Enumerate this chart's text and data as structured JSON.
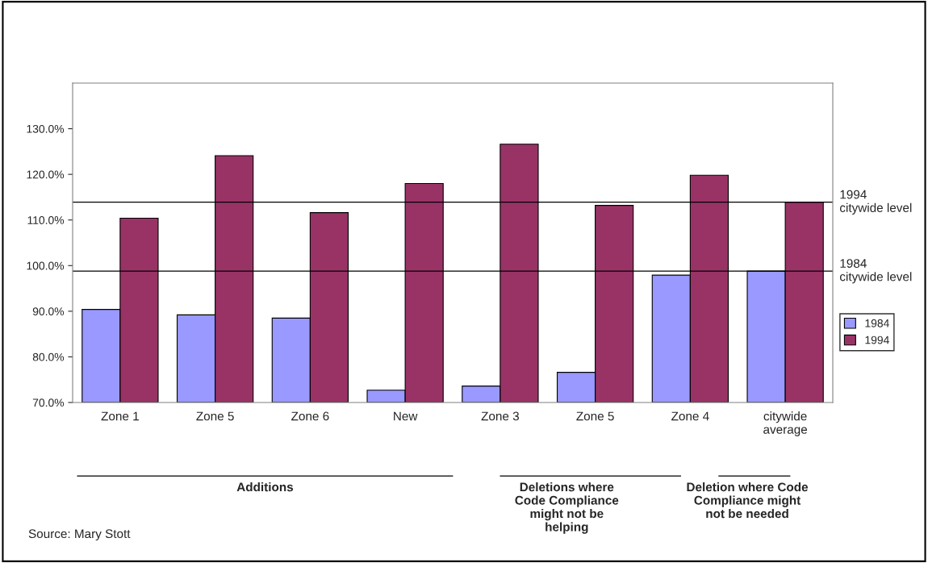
{
  "chart_data": {
    "type": "bar",
    "categories": [
      "Zone 1",
      "Zone 5",
      "Zone 6",
      "New",
      "Zone 3",
      "Zone 5",
      "Zone 4",
      "citywide\naverage"
    ],
    "series": [
      {
        "name": "1984",
        "color": "#9999ff",
        "values": [
          90.4,
          89.2,
          88.5,
          72.7,
          73.6,
          76.6,
          97.9,
          98.8
        ]
      },
      {
        "name": "1994",
        "color": "#993366",
        "values": [
          110.4,
          124.1,
          111.6,
          118.0,
          126.6,
          113.2,
          119.8,
          113.9
        ]
      }
    ],
    "ylim": [
      70,
      140
    ],
    "yticks": [
      {
        "value": 70,
        "label": "70.0%"
      },
      {
        "value": 80,
        "label": "80.0%"
      },
      {
        "value": 90,
        "label": "90.0%"
      },
      {
        "value": 100,
        "label": "100.0%"
      },
      {
        "value": 110,
        "label": "110.0%"
      },
      {
        "value": 120,
        "label": "120.0%"
      },
      {
        "value": 130,
        "label": "130.0%"
      }
    ],
    "ref_lines": [
      {
        "axis": "y",
        "value": 113.9,
        "label": "1994\ncitywide level",
        "color": "#000000"
      },
      {
        "axis": "y",
        "value": 98.8,
        "label": "1984\ncitywide level",
        "color": "#000000"
      }
    ],
    "grid": false,
    "legend": "right",
    "annotations": [
      "Additions",
      "Deletions where Code Compliance might not be helping",
      "Deletion where Code Compliance might not be needed",
      "Source: Mary Stott"
    ]
  }
}
